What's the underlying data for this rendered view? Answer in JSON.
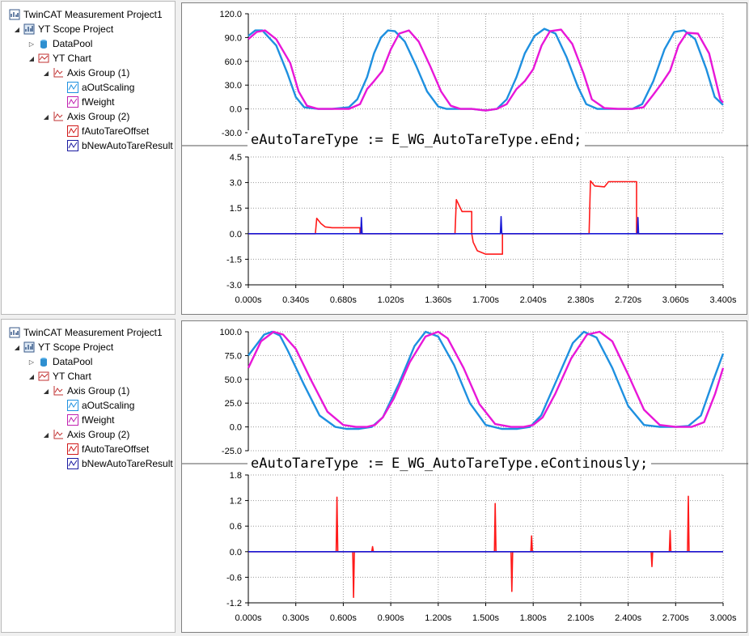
{
  "panels": [
    {
      "tree": {
        "items": [
          {
            "label": "TwinCAT Measurement Project1",
            "icon": "project-icon",
            "toggle": "",
            "level": 0
          },
          {
            "label": "YT Scope Project",
            "icon": "scope-icon",
            "toggle": "◢",
            "level": 1
          },
          {
            "label": "DataPool",
            "icon": "datapool-icon",
            "toggle": "▷",
            "level": 2
          },
          {
            "label": "YT Chart",
            "icon": "chart-icon",
            "toggle": "◢",
            "level": 2
          },
          {
            "label": "Axis Group (1)",
            "icon": "axis-group-icon",
            "toggle": "◢",
            "level": 3
          },
          {
            "label": "aOutScaling",
            "icon": "channel-blue-icon",
            "toggle": "",
            "level": 4
          },
          {
            "label": "fWeight",
            "icon": "channel-magenta-icon",
            "toggle": "",
            "level": 4
          },
          {
            "label": "Axis Group (2)",
            "icon": "axis-group-icon",
            "toggle": "◢",
            "level": 3
          },
          {
            "label": "fAutoTareOffset",
            "icon": "channel-red-icon",
            "toggle": "",
            "level": 4
          },
          {
            "label": "bNewAutoTareResult",
            "icon": "channel-navy-icon",
            "toggle": "",
            "level": 4
          }
        ]
      },
      "code_text": "eAutoTareType := E_WG_AutoTareType.eEnd;"
    },
    {
      "tree": {
        "items": [
          {
            "label": "TwinCAT Measurement Project1",
            "icon": "project-icon",
            "toggle": "",
            "level": 0
          },
          {
            "label": "YT Scope Project",
            "icon": "scope-icon",
            "toggle": "◢",
            "level": 1
          },
          {
            "label": "DataPool",
            "icon": "datapool-icon",
            "toggle": "▷",
            "level": 2
          },
          {
            "label": "YT Chart",
            "icon": "chart-icon",
            "toggle": "◢",
            "level": 2
          },
          {
            "label": "Axis Group (1)",
            "icon": "axis-group-icon",
            "toggle": "◢",
            "level": 3
          },
          {
            "label": "aOutScaling",
            "icon": "channel-blue-icon",
            "toggle": "",
            "level": 4
          },
          {
            "label": "fWeight",
            "icon": "channel-magenta-icon",
            "toggle": "",
            "level": 4
          },
          {
            "label": "Axis Group (2)",
            "icon": "axis-group-icon",
            "toggle": "◢",
            "level": 3
          },
          {
            "label": "fAutoTareOffset",
            "icon": "channel-red-icon",
            "toggle": "",
            "level": 4
          },
          {
            "label": "bNewAutoTareResult",
            "icon": "channel-navy-icon",
            "toggle": "",
            "level": 4
          }
        ]
      },
      "code_text": "eAutoTareType := E_WG_AutoTareType.eContinously;"
    }
  ],
  "colors": {
    "aOutScaling": "#1e90e0",
    "fWeight": "#e817d8",
    "fAutoTareOffset": "#ff1a1a",
    "bNewAutoTareResult": "#1a1ad6"
  },
  "chart_data": [
    {
      "type": "line",
      "axis_group": "Axis Group (1)",
      "yticks": [
        "120.0",
        "90.0",
        "60.0",
        "30.0",
        "0.0",
        "-30.0"
      ],
      "ylim": [
        -30,
        120
      ],
      "xlim": [
        0,
        3.4
      ],
      "grid": true,
      "series": [
        {
          "name": "aOutScaling",
          "x": [
            0,
            0.05,
            0.1,
            0.2,
            0.28,
            0.34,
            0.4,
            0.5,
            0.6,
            0.72,
            0.78,
            0.85,
            0.9,
            0.95,
            1.0,
            1.05,
            1.12,
            1.2,
            1.28,
            1.36,
            1.42,
            1.5,
            1.6,
            1.7,
            1.78,
            1.85,
            1.92,
            1.98,
            2.05,
            2.12,
            2.2,
            2.28,
            2.36,
            2.42,
            2.5,
            2.6,
            2.75,
            2.82,
            2.9,
            2.98,
            3.05,
            3.12,
            3.2,
            3.28,
            3.34,
            3.4
          ],
          "y": [
            92,
            99,
            99,
            80,
            45,
            15,
            2,
            0,
            0,
            2,
            12,
            40,
            70,
            90,
            99,
            98,
            85,
            55,
            22,
            3,
            0,
            0,
            0,
            -2,
            0,
            12,
            40,
            70,
            92,
            101,
            95,
            65,
            28,
            6,
            0,
            0,
            0,
            6,
            35,
            75,
            97,
            99,
            88,
            50,
            15,
            5
          ]
        },
        {
          "name": "fWeight",
          "x": [
            0,
            0.06,
            0.12,
            0.2,
            0.3,
            0.36,
            0.42,
            0.5,
            0.6,
            0.72,
            0.8,
            0.85,
            0.9,
            0.96,
            1.02,
            1.08,
            1.15,
            1.22,
            1.3,
            1.38,
            1.45,
            1.52,
            1.6,
            1.7,
            1.78,
            1.85,
            1.92,
            1.98,
            2.04,
            2.1,
            2.16,
            2.24,
            2.32,
            2.4,
            2.46,
            2.55,
            2.65,
            2.75,
            2.83,
            2.9,
            2.96,
            3.02,
            3.08,
            3.14,
            3.22,
            3.3,
            3.38,
            3.4
          ],
          "y": [
            88,
            97,
            99,
            88,
            58,
            22,
            4,
            0,
            0,
            0,
            6,
            25,
            35,
            48,
            75,
            95,
            99,
            85,
            55,
            22,
            4,
            0,
            0,
            -2,
            0,
            6,
            25,
            35,
            50,
            80,
            98,
            100,
            82,
            45,
            12,
            1,
            0,
            0,
            2,
            18,
            32,
            48,
            80,
            96,
            95,
            70,
            12,
            8
          ]
        }
      ]
    },
    {
      "type": "line",
      "axis_group": "Axis Group (2)",
      "yticks": [
        "4.5",
        "3.0",
        "1.5",
        "0.0",
        "-1.5",
        "-3.0"
      ],
      "ylim": [
        -3,
        4.5
      ],
      "xlim": [
        0,
        3.4
      ],
      "xticks": [
        "0.000s",
        "0.340s",
        "0.680s",
        "1.020s",
        "1.360s",
        "1.700s",
        "2.040s",
        "2.380s",
        "2.720s",
        "3.060s",
        "3.400s"
      ],
      "grid": true,
      "series": [
        {
          "name": "fAutoTareOffset",
          "x": [
            0,
            0.48,
            0.49,
            0.52,
            0.55,
            0.6,
            0.8,
            0.8,
            1.48,
            1.49,
            1.53,
            1.6,
            1.6,
            1.61,
            1.64,
            1.7,
            1.82,
            1.82,
            2.44,
            2.45,
            2.48,
            2.55,
            2.58,
            2.64,
            2.78,
            2.78,
            3.4
          ],
          "y": [
            0,
            0,
            0.9,
            0.6,
            0.4,
            0.35,
            0.35,
            0,
            0,
            2,
            1.3,
            1.3,
            0,
            -0.5,
            -1,
            -1.2,
            -1.2,
            0,
            0,
            3.1,
            2.8,
            2.75,
            3.05,
            3.05,
            3.05,
            0,
            0
          ]
        },
        {
          "name": "bNewAutoTareResult",
          "x": [
            0,
            0.805,
            0.81,
            0.815,
            1.805,
            1.81,
            1.815,
            2.785,
            2.79,
            2.795,
            3.4
          ],
          "y": [
            0,
            0,
            0.95,
            0,
            0,
            1,
            0,
            0,
            0.95,
            0,
            0
          ]
        }
      ]
    },
    {
      "type": "line",
      "axis_group": "Axis Group (1)",
      "yticks": [
        "100.0",
        "75.0",
        "50.0",
        "25.0",
        "0.0",
        "-25.0"
      ],
      "ylim": [
        -25,
        100
      ],
      "xlim": [
        0,
        3.0
      ],
      "grid": true,
      "series": [
        {
          "name": "aOutScaling",
          "x": [
            0,
            0.1,
            0.15,
            0.2,
            0.25,
            0.35,
            0.45,
            0.55,
            0.62,
            0.7,
            0.78,
            0.85,
            0.95,
            1.05,
            1.12,
            1.2,
            1.3,
            1.4,
            1.5,
            1.6,
            1.7,
            1.78,
            1.85,
            1.95,
            2.05,
            2.12,
            2.2,
            2.3,
            2.4,
            2.5,
            2.6,
            2.7,
            2.78,
            2.86,
            2.94,
            3.0
          ],
          "y": [
            75,
            97,
            100,
            96,
            80,
            45,
            12,
            0,
            -2,
            -2,
            0,
            10,
            45,
            85,
            100,
            95,
            65,
            25,
            2,
            -2,
            -2,
            0,
            12,
            50,
            88,
            100,
            94,
            62,
            22,
            2,
            0,
            0,
            1,
            12,
            50,
            77
          ]
        },
        {
          "name": "fWeight",
          "x": [
            0,
            0.08,
            0.16,
            0.22,
            0.3,
            0.4,
            0.5,
            0.6,
            0.68,
            0.75,
            0.8,
            0.85,
            0.92,
            1.02,
            1.12,
            1.2,
            1.26,
            1.36,
            1.46,
            1.56,
            1.66,
            1.74,
            1.8,
            1.86,
            1.94,
            2.04,
            2.14,
            2.22,
            2.3,
            2.4,
            2.5,
            2.6,
            2.7,
            2.8,
            2.88,
            2.95,
            3.0
          ],
          "y": [
            62,
            90,
            100,
            97,
            82,
            48,
            16,
            2,
            0,
            0,
            2,
            10,
            30,
            68,
            95,
            100,
            93,
            62,
            24,
            3,
            0,
            0,
            2,
            10,
            35,
            72,
            97,
            100,
            90,
            55,
            18,
            2,
            0,
            0,
            5,
            35,
            62
          ]
        }
      ]
    },
    {
      "type": "line",
      "axis_group": "Axis Group (2)",
      "yticks": [
        "1.8",
        "1.2",
        "0.6",
        "0.0",
        "-0.6",
        "-1.2"
      ],
      "ylim": [
        -1.2,
        1.8
      ],
      "xlim": [
        0,
        3.0
      ],
      "xticks": [
        "0.000s",
        "0.300s",
        "0.600s",
        "0.900s",
        "1.200s",
        "1.500s",
        "1.800s",
        "2.100s",
        "2.400s",
        "2.700s",
        "3.000s"
      ],
      "grid": true,
      "series": [
        {
          "name": "fAutoTareOffset",
          "x": [
            0,
            0.555,
            0.56,
            0.565,
            0.57,
            0.66,
            0.665,
            0.67,
            0.675,
            0.78,
            0.785,
            0.79,
            1.555,
            1.56,
            1.565,
            1.57,
            1.66,
            1.665,
            1.67,
            1.675,
            1.785,
            1.79,
            1.795,
            2.545,
            2.55,
            2.555,
            2.66,
            2.665,
            2.67,
            2.775,
            2.78,
            2.785,
            2.79,
            3.0
          ],
          "y": [
            0,
            0,
            1.28,
            0,
            0,
            0,
            -1.07,
            0,
            0,
            0,
            0.12,
            0,
            0,
            1.13,
            0,
            0,
            0,
            -0.93,
            0,
            0,
            0,
            0.37,
            0,
            0,
            -0.35,
            0,
            0,
            0.5,
            0,
            0,
            1.3,
            0,
            0,
            0
          ]
        },
        {
          "name": "bNewAutoTareResult",
          "x": [
            0,
            3.0
          ],
          "y": [
            0,
            0
          ]
        }
      ]
    }
  ]
}
